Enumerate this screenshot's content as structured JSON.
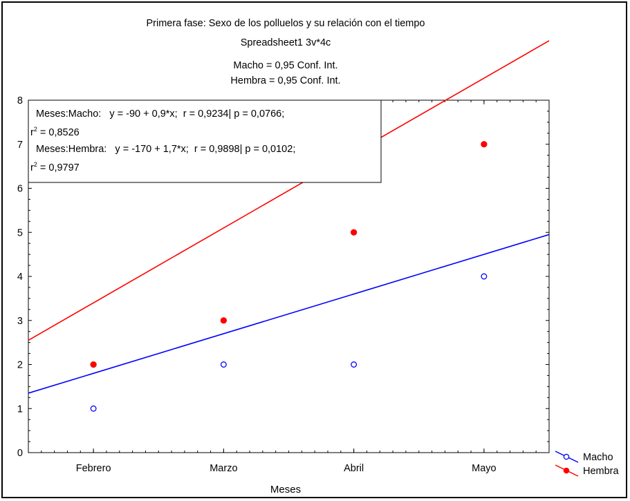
{
  "chart_data": {
    "type": "scatter",
    "titles": [
      "Primera fase: Sexo de los polluelos y su relación con el tiempo",
      "Spreadsheet1 3v*4c",
      "Macho = 0,95 Conf. Int.",
      "Hembra = 0,95 Conf. Int."
    ],
    "xlabel": "Meses",
    "ylabel": "",
    "categories": [
      "Febrero",
      "Marzo",
      "Abril",
      "Mayo"
    ],
    "x_numeric": [
      2,
      3,
      4,
      5
    ],
    "xlim": [
      1.5,
      5.5
    ],
    "ylim": [
      0,
      8
    ],
    "yticks": [
      "0",
      "1",
      "2",
      "3",
      "4",
      "5",
      "6",
      "7",
      "8"
    ],
    "series": [
      {
        "name": "Macho",
        "values": [
          1,
          2,
          2,
          4
        ],
        "fit": {
          "intercept": -90,
          "slope": 0.9
        },
        "marker": "open-circle",
        "color": "#0000ff"
      },
      {
        "name": "Hembra",
        "values": [
          2,
          3,
          5,
          7
        ],
        "fit": {
          "intercept": -170,
          "slope": 1.7
        },
        "marker": "filled-circle",
        "color": "#ff0000"
      }
    ],
    "annotation_lines": [
      "Meses:Macho:   y = -90 + 0,9*x;  r = 0,9234| p = 0,0766;",
      "r",
      "2",
      " = 0,8526",
      "Meses:Hembra:   y = -170 + 1,7*x;  r = 0,9898| p = 0,0102;",
      "r",
      "2",
      " = 0,9797"
    ],
    "grid": false,
    "legend_position": "bottom-right"
  }
}
